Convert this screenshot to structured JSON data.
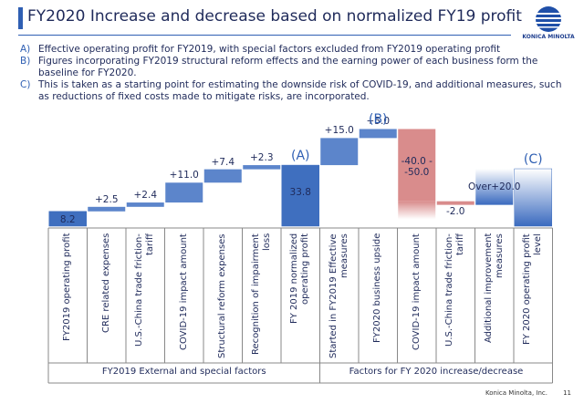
{
  "slide": {
    "title": "FY2020  Increase and decrease based on normalized FY19 profit",
    "logo": "KONICA MINOLTA",
    "notes": [
      {
        "marker": "A)",
        "text": "Effective operating profit for FY2019, with special factors excluded from FY2019 operating profit"
      },
      {
        "marker": "B)",
        "text": "Figures incorporating FY2019 structural reform effects and the earning power of each business form the baseline for FY2020."
      },
      {
        "marker": "C)",
        "text": "This is taken as a starting point for estimating the downside risk of COVID-19, and additional measures, such as reductions of fixed costs made to mitigate risks, are incorporated."
      }
    ],
    "footer": {
      "company": "Konica Minolta, Inc.",
      "page": "11"
    }
  },
  "chart_data": {
    "type": "waterfall",
    "groups": [
      {
        "label": "FY2019 External and special factors",
        "categories": [
          "FY2019 operating profit",
          "CRE related expenses",
          "U.S.-China trade friction-tariff",
          "COVID-19 impact amount",
          "Structural reform expenses",
          "Recognition of impairment loss",
          "FY 2019 normalized operating profit"
        ]
      },
      {
        "label": "Factors for FY 2020 increase/decrease",
        "categories": [
          "Started in FY2019 Effective measures",
          "FY2020 business upside",
          "COVID-19 impact amount",
          "U.S.-China trade friction-tariff",
          "Additional improvement measures",
          "FY 2020 operating profit level"
        ]
      }
    ],
    "kinds": [
      "total",
      "delta",
      "delta",
      "delta",
      "delta",
      "delta",
      "total",
      "delta",
      "delta",
      "delta",
      "delta",
      "delta",
      "total"
    ],
    "values": [
      8.2,
      2.5,
      2.4,
      11.0,
      7.4,
      2.3,
      33.8,
      15.0,
      5.0,
      -40.0,
      -2.0,
      20.0,
      null
    ],
    "value_labels": [
      "8.2",
      "+2.5",
      "+2.4",
      "+11.0",
      "+7.4",
      "+2.3",
      "33.8",
      "+15.0",
      "+5.0",
      "-40.0 -\n-50.0",
      "-2.0",
      "Over+20.0",
      null
    ],
    "range_to": [
      null,
      null,
      null,
      null,
      null,
      null,
      null,
      null,
      null,
      -50.0,
      null,
      null,
      null
    ],
    "open_ended": [
      false,
      false,
      false,
      false,
      false,
      false,
      false,
      false,
      false,
      false,
      false,
      true,
      true
    ],
    "annotations": [
      null,
      null,
      null,
      null,
      null,
      null,
      "(A)",
      null,
      "(B)",
      null,
      null,
      null,
      "(C)"
    ],
    "color_increase": "#4a78c5",
    "color_decrease": "#d98c8c",
    "color_total": "#3f6fbf"
  }
}
